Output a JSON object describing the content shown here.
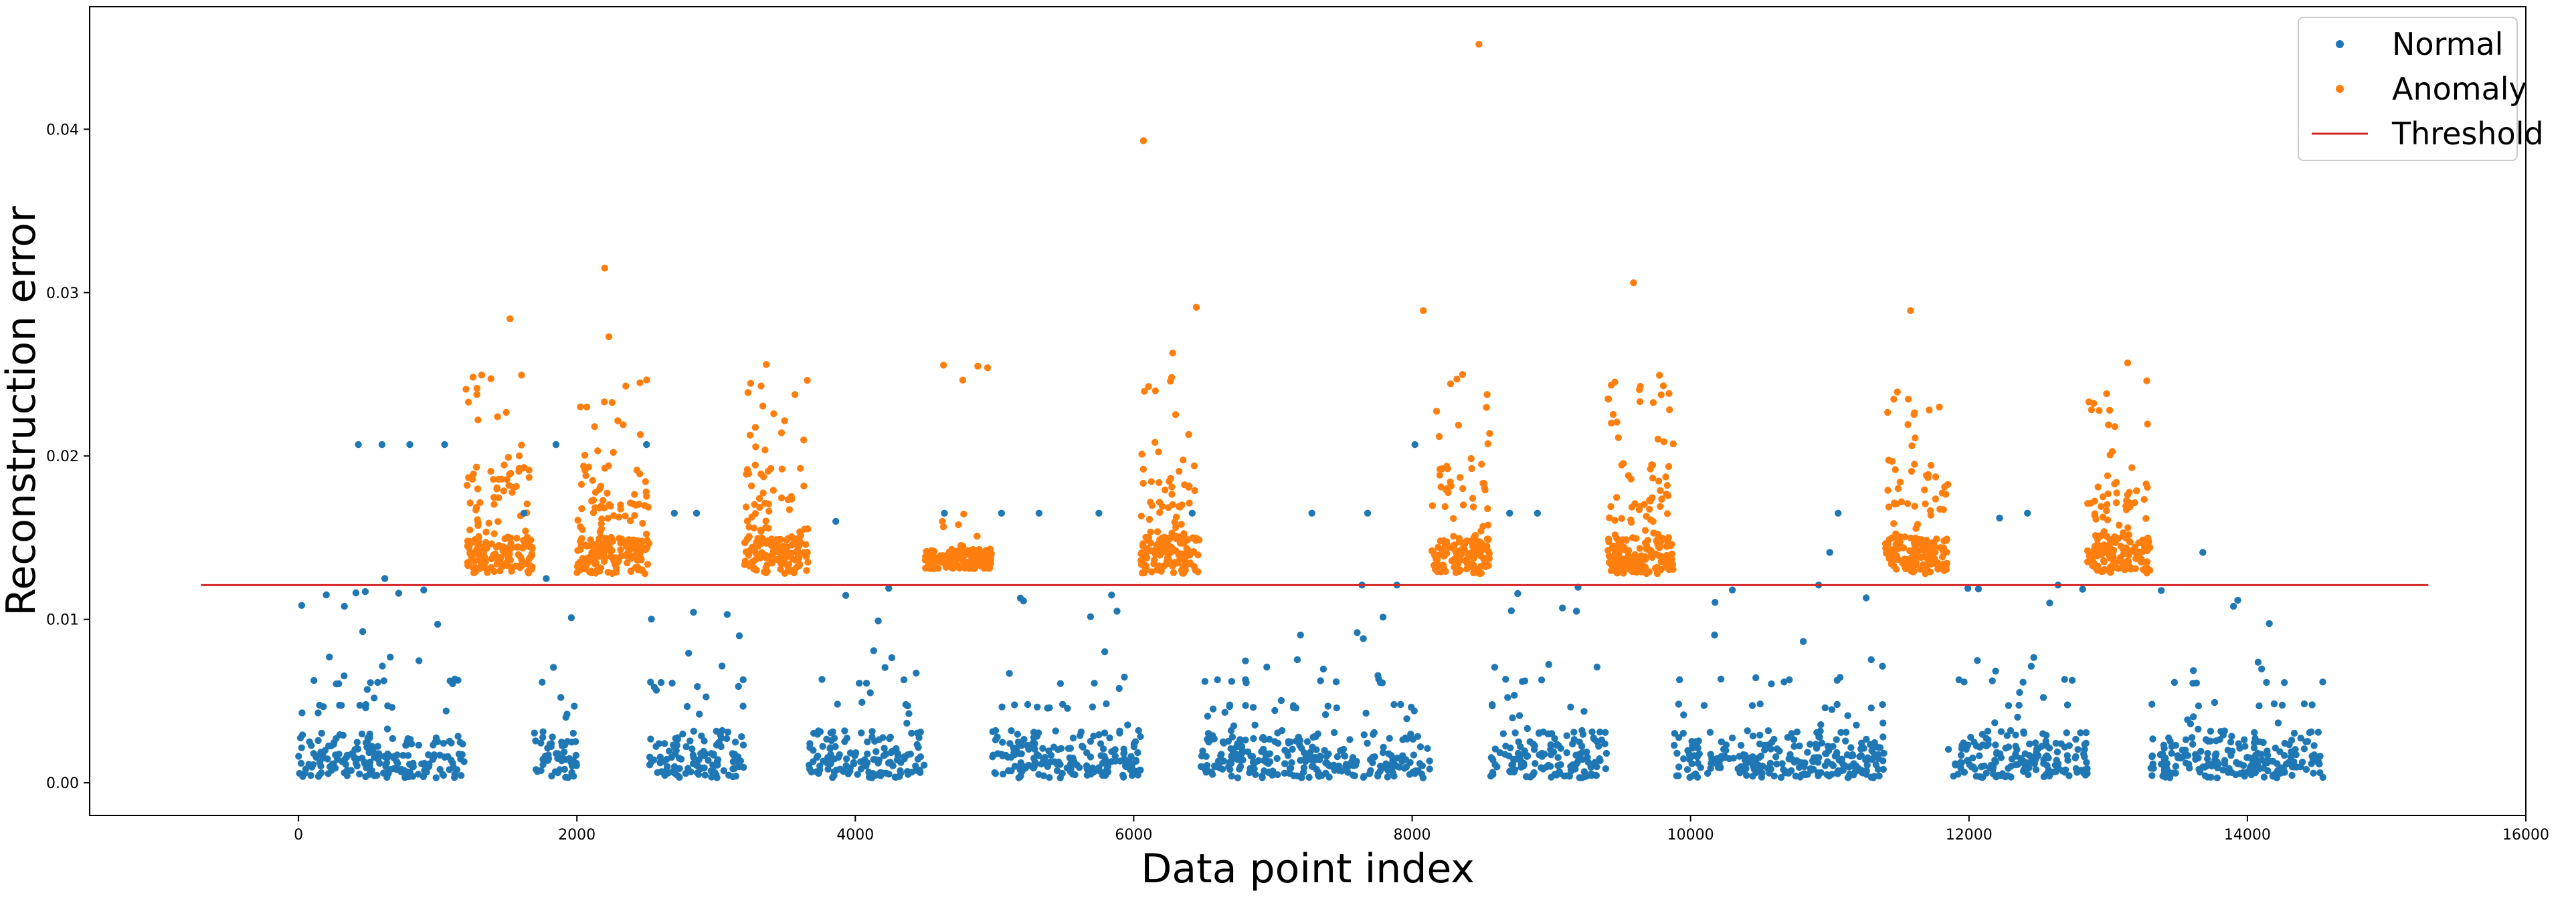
{
  "chart_data": {
    "type": "scatter",
    "title": "",
    "xlabel": "Data point index",
    "ylabel": "Reconstruction error",
    "xlim": [
      -1500,
      16000
    ],
    "ylim": [
      -0.002,
      0.0475
    ],
    "xticks": [
      0,
      2000,
      4000,
      6000,
      8000,
      10000,
      12000,
      14000,
      16000
    ],
    "xtick_labels": [
      "0",
      "2000",
      "4000",
      "6000",
      "8000",
      "10000",
      "12000",
      "14000",
      "16000"
    ],
    "yticks": [
      0.0,
      0.01,
      0.02,
      0.03,
      0.04
    ],
    "ytick_labels": [
      "0.00",
      "0.01",
      "0.02",
      "0.03",
      "0.04"
    ],
    "threshold": {
      "value": 0.0121,
      "x_start": -700,
      "x_end": 15300
    },
    "legend_position": "upper right",
    "legend": [
      {
        "label": "Normal",
        "marker": "dot",
        "color": "#1f77b4"
      },
      {
        "label": "Anomaly",
        "marker": "dot",
        "color": "#ff7f0e"
      },
      {
        "label": "Threshold",
        "marker": "line",
        "color": "#d62728"
      }
    ],
    "normal_color": "#1f77b4",
    "anomaly_color": "#ff7f0e",
    "threshold_color": "#d62728",
    "normal_segments": [
      {
        "x_start": 0,
        "x_end": 1200
      },
      {
        "x_start": 1680,
        "x_end": 2000
      },
      {
        "x_start": 2520,
        "x_end": 3200
      },
      {
        "x_start": 3660,
        "x_end": 4500
      },
      {
        "x_start": 4980,
        "x_end": 6050
      },
      {
        "x_start": 6480,
        "x_end": 8140
      },
      {
        "x_start": 8560,
        "x_end": 9400
      },
      {
        "x_start": 9880,
        "x_end": 11400
      },
      {
        "x_start": 11850,
        "x_end": 12850
      },
      {
        "x_start": 13300,
        "x_end": 14550
      }
    ],
    "anomaly_segments": [
      {
        "x_start": 1200,
        "x_end": 1680
      },
      {
        "x_start": 2000,
        "x_end": 2520
      },
      {
        "x_start": 3200,
        "x_end": 3660
      },
      {
        "x_start": 4500,
        "x_end": 4980
      },
      {
        "x_start": 6050,
        "x_end": 6480
      },
      {
        "x_start": 8140,
        "x_end": 8560
      },
      {
        "x_start": 9400,
        "x_end": 9880
      },
      {
        "x_start": 11400,
        "x_end": 11850
      },
      {
        "x_start": 12850,
        "x_end": 13300
      }
    ],
    "notable_points": [
      {
        "series": "Anomaly",
        "x": 8480,
        "y": 0.0452
      },
      {
        "series": "Anomaly",
        "x": 6070,
        "y": 0.0393
      },
      {
        "series": "Anomaly",
        "x": 2200,
        "y": 0.0315
      },
      {
        "series": "Anomaly",
        "x": 9590,
        "y": 0.0306
      },
      {
        "series": "Anomaly",
        "x": 1520,
        "y": 0.0284
      },
      {
        "series": "Anomaly",
        "x": 6450,
        "y": 0.0291
      },
      {
        "series": "Anomaly",
        "x": 8080,
        "y": 0.0289
      },
      {
        "series": "Anomaly",
        "x": 11580,
        "y": 0.0289
      },
      {
        "series": "Anomaly",
        "x": 2230,
        "y": 0.0273
      },
      {
        "series": "Anomaly",
        "x": 6280,
        "y": 0.0263
      },
      {
        "series": "Anomaly",
        "x": 13140,
        "y": 0.0257
      },
      {
        "series": "Anomaly",
        "x": 3360,
        "y": 0.0256
      },
      {
        "series": "Anomaly",
        "x": 4880,
        "y": 0.0255
      },
      {
        "series": "Normal",
        "x": 430,
        "y": 0.0207
      },
      {
        "series": "Normal",
        "x": 600,
        "y": 0.0207
      },
      {
        "series": "Normal",
        "x": 800,
        "y": 0.0207
      },
      {
        "series": "Normal",
        "x": 1050,
        "y": 0.0207
      },
      {
        "series": "Normal",
        "x": 1850,
        "y": 0.0207
      },
      {
        "series": "Normal",
        "x": 8020,
        "y": 0.0207
      },
      {
        "series": "Normal",
        "x": 2500,
        "y": 0.0207
      }
    ]
  }
}
